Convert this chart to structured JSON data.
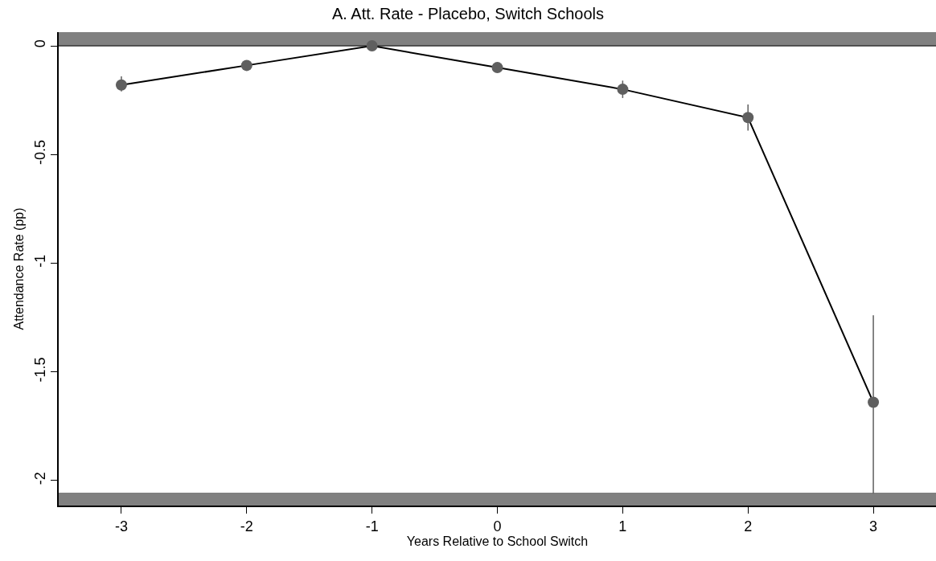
{
  "chart_data": {
    "type": "line",
    "title": "A. Att. Rate - Placebo, Switch Schools",
    "xlabel": "Years Relative to School Switch",
    "ylabel": "Attendance Rate (pp)",
    "x": [
      -3,
      -2,
      -1,
      0,
      1,
      2,
      3
    ],
    "series": [
      {
        "color": "#5f5f5f",
        "values": [
          -0.18,
          -0.09,
          0,
          -0.1,
          -0.2,
          -0.33,
          -1.64
        ],
        "errors": [
          [
            -0.21,
            -0.14
          ],
          null,
          null,
          [
            -0.12,
            -0.08
          ],
          [
            -0.24,
            -0.16
          ],
          [
            -0.39,
            -0.27
          ],
          [
            -2.06,
            -1.24
          ]
        ]
      }
    ],
    "xlim": [
      -3.5,
      3.5
    ],
    "ylim": [
      -2.115,
      0.063
    ],
    "xticks": [
      -3,
      -2,
      -1,
      0,
      1,
      2,
      3
    ],
    "yticks": [
      0,
      -0.5,
      -1,
      -1.5,
      -2
    ],
    "bands": [
      {
        "axis": "y",
        "from": 0,
        "to": 0.063,
        "color": "#808080"
      },
      {
        "axis": "y",
        "from": -2.115,
        "to": -2.056,
        "color": "#808080"
      }
    ],
    "ref_lines": [
      {
        "axis": "y",
        "value": 0,
        "color": "#333333"
      }
    ],
    "marker": "circle",
    "grid": false
  }
}
